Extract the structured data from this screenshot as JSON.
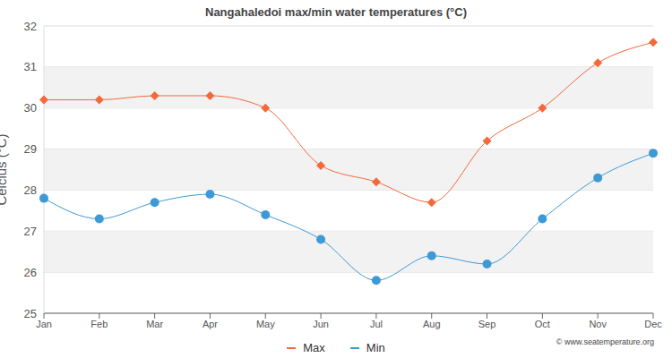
{
  "chart_data": {
    "type": "line",
    "title": "Nangahaledoi max/min water temperatures (°C)",
    "y_label": "Celcius (°C)",
    "annotation": "© www.seatemperature.org",
    "categories": [
      "Jan",
      "Feb",
      "Mar",
      "Apr",
      "May",
      "Jun",
      "Jul",
      "Aug",
      "Sep",
      "Oct",
      "Nov",
      "Dec"
    ],
    "series": [
      {
        "name": "Max",
        "color": "#f4683a",
        "marker": "diamond",
        "line_style": "solid",
        "values": [
          30.2,
          30.2,
          30.3,
          30.3,
          30.0,
          28.6,
          28.2,
          27.7,
          29.2,
          30.0,
          31.1,
          31.6
        ]
      },
      {
        "name": "Min",
        "color": "#3d9ad6",
        "marker": "circle",
        "line_style": "solid",
        "values": [
          27.8,
          27.3,
          27.7,
          27.9,
          27.4,
          26.8,
          25.8,
          26.4,
          26.2,
          27.3,
          28.3,
          28.9
        ]
      }
    ],
    "ylim": [
      25,
      32
    ],
    "yticks": [
      25,
      26,
      27,
      28,
      29,
      30,
      31,
      32
    ],
    "grid": true,
    "legend": "bottom"
  }
}
